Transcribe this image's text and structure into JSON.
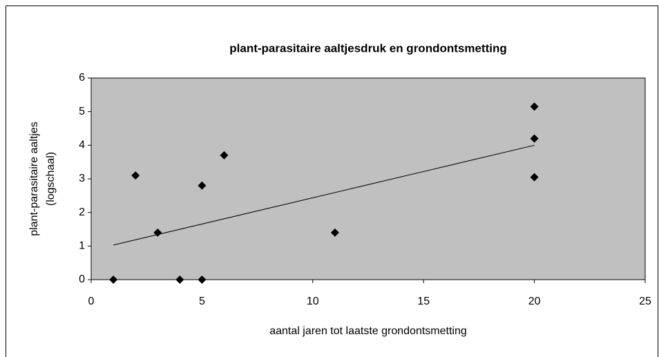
{
  "chart_data": {
    "type": "scatter",
    "title": "plant-parasitaire aaltjesdruk en grondontsmetting",
    "xlabel": "aantal jaren tot laatste grondontsmetting",
    "ylabel": [
      "plant-parasitaire aaltjes",
      "(logschaal)"
    ],
    "x": [
      1,
      2,
      3,
      4,
      5,
      5,
      6,
      11,
      20,
      20,
      20
    ],
    "values": [
      0,
      3.1,
      1.4,
      0,
      0,
      2.8,
      3.7,
      1.4,
      5.15,
      4.2,
      3.05
    ],
    "color": "#000000",
    "trendline": {
      "x": [
        1,
        20
      ],
      "values": [
        1.03,
        4.0
      ],
      "color": "#000000"
    },
    "xlim": [
      0,
      25
    ],
    "xticks": [
      0,
      5,
      10,
      15,
      20,
      25
    ],
    "ylim": [
      0,
      6
    ],
    "yticks": [
      0,
      1,
      2,
      3,
      4,
      5,
      6
    ],
    "plot_background": "#c0c0c0"
  }
}
